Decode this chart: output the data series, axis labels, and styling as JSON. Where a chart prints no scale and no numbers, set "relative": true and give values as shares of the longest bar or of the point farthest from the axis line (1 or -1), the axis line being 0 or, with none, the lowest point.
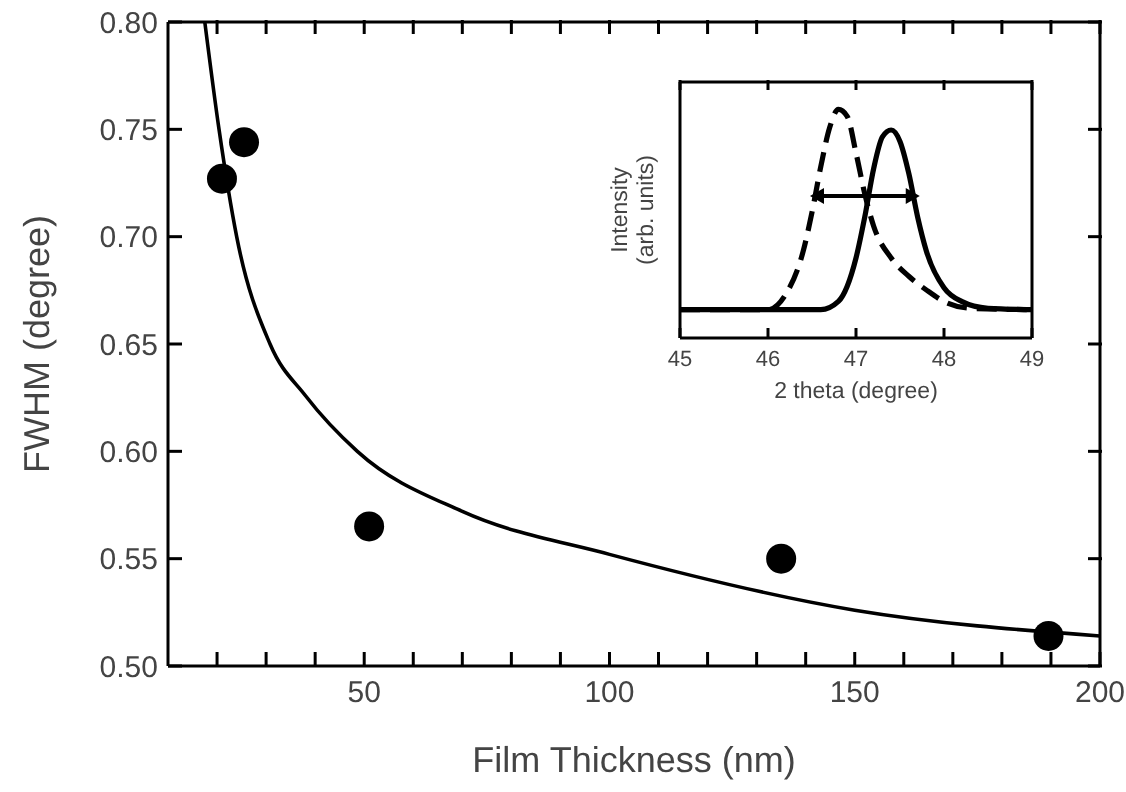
{
  "chart_data": [
    {
      "type": "scatter",
      "xlabel": "Film Thickness (nm)",
      "ylabel": "FWHM (degree)",
      "xlim": [
        10,
        200
      ],
      "xticks": [
        {
          "value": 20,
          "label": null
        },
        {
          "value": 30,
          "label": null
        },
        {
          "value": 40,
          "label": null
        },
        50,
        {
          "value": 60,
          "label": null
        },
        {
          "value": 70,
          "label": null
        },
        {
          "value": 80,
          "label": null
        },
        {
          "value": 90,
          "label": null
        },
        100,
        {
          "value": 110,
          "label": null
        },
        {
          "value": 120,
          "label": null
        },
        {
          "value": 130,
          "label": null
        },
        {
          "value": 140,
          "label": null
        },
        150,
        {
          "value": 160,
          "label": null
        },
        {
          "value": 170,
          "label": null
        },
        {
          "value": 180,
          "label": null
        },
        {
          "value": 190,
          "label": null
        },
        200
      ],
      "ylim": [
        0.5,
        0.8
      ],
      "yticks": [
        {
          "value": 0.5,
          "label": "0.50"
        },
        0.55,
        {
          "value": 0.6,
          "label": "0.60"
        },
        0.65,
        {
          "value": 0.7,
          "label": "0.70"
        },
        0.75,
        {
          "value": 0.8,
          "label": "0.80"
        }
      ],
      "series": [
        {
          "type": "scatter",
          "marker": "circle",
          "color": "#000000",
          "x": [
            21,
            25.5,
            51,
            135,
            189.5
          ],
          "values": [
            0.727,
            0.744,
            0.565,
            0.55,
            0.514
          ]
        },
        {
          "type": "line",
          "marker": "none",
          "color": "#000000",
          "line_style": "solid",
          "x": [
            17.5,
            20.4,
            24,
            30.8,
            38,
            48.6,
            70,
            100,
            150,
            200
          ],
          "values": [
            0.8,
            0.75,
            0.7,
            0.65,
            0.626,
            0.6,
            0.572,
            0.552,
            0.526,
            0.514
          ]
        }
      ]
    },
    {
      "type": "line",
      "relative": true,
      "xlabel": "2 theta (degree)",
      "ylabel": "Intensity\n(arb. units)",
      "marker": "none",
      "xlim": [
        45,
        49
      ],
      "xticks": [
        45,
        46,
        47,
        48,
        49
      ],
      "series": [
        {
          "color": "#000000",
          "line_style": "dashed",
          "x": [
            45,
            46,
            46.2,
            46.4,
            46.5,
            46.6,
            46.7,
            46.8,
            46.9,
            47,
            47.1,
            47.2,
            47.4,
            47.6,
            47.8,
            48,
            48.3,
            49
          ],
          "values": [
            0.124,
            0.124,
            0.19,
            0.38,
            0.55,
            0.75,
            0.92,
            1,
            0.97,
            0.81,
            0.63,
            0.49,
            0.35,
            0.27,
            0.21,
            0.16,
            0.13,
            0.124
          ]
        },
        {
          "color": "#000000",
          "line_style": "solid",
          "x": [
            45,
            46.6,
            46.8,
            47,
            47.1,
            47.2,
            47.3,
            47.4,
            47.5,
            47.6,
            47.7,
            47.8,
            48,
            48.2,
            48.5,
            49
          ],
          "values": [
            0.124,
            0.124,
            0.16,
            0.35,
            0.53,
            0.74,
            0.88,
            0.91,
            0.86,
            0.72,
            0.53,
            0.38,
            0.22,
            0.16,
            0.13,
            0.124
          ]
        }
      ]
    }
  ]
}
